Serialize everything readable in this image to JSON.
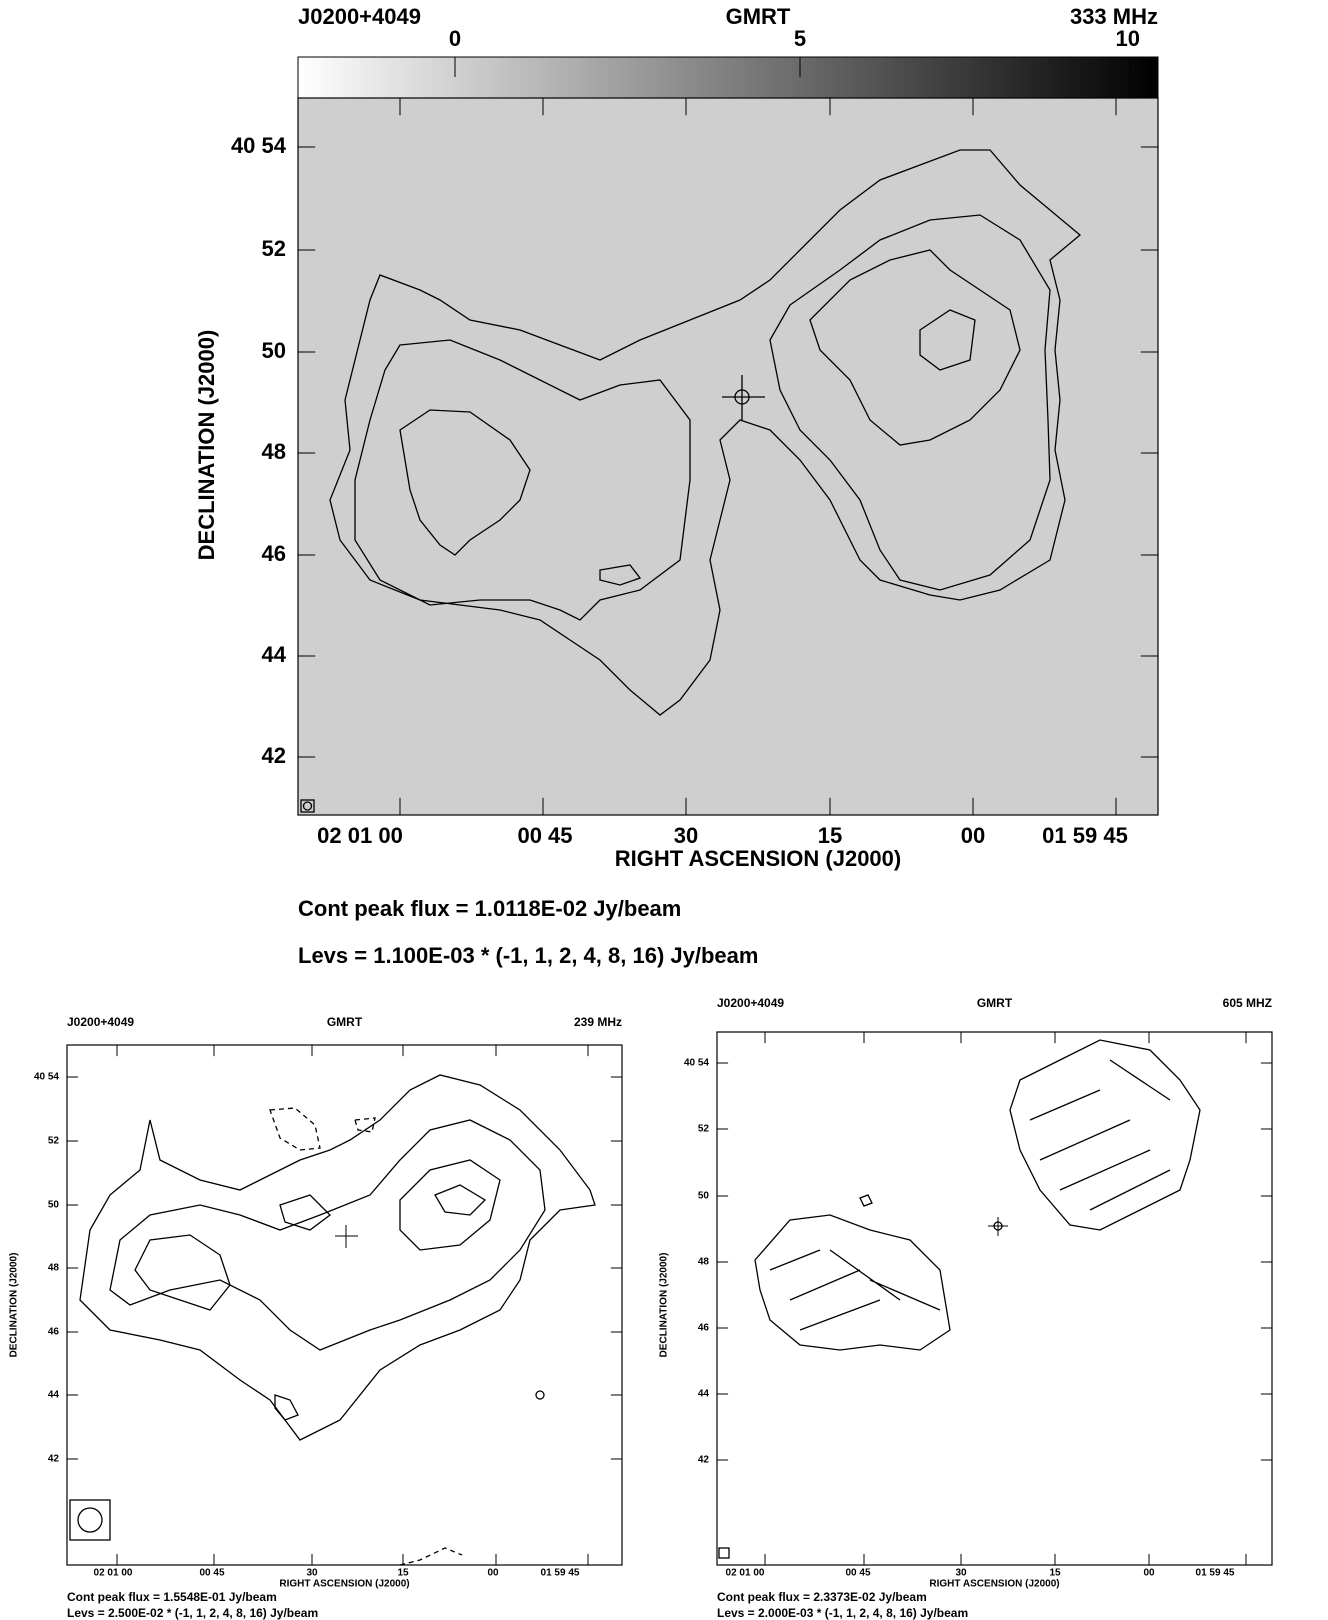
{
  "panels": [
    {
      "header": {
        "source": "J0200+4049",
        "telescope": "GMRT",
        "frequency": "333 MHz"
      },
      "colorbar_ticks": [
        "0",
        "5",
        "10"
      ],
      "y_ticks": [
        "40 54",
        "52",
        "50",
        "48",
        "46",
        "44",
        "42"
      ],
      "y_label": "DECLINATION (J2000)",
      "x_ticks": [
        "02 01 00",
        "00 45",
        "30",
        "15",
        "00",
        "01 59 45"
      ],
      "x_label": "RIGHT ASCENSION (J2000)",
      "peak_flux": "Cont peak flux =  1.0118E-02 Jy/beam",
      "levels": "Levs = 1.100E-03 * (-1, 1, 2, 4, 8, 16) Jy/beam"
    },
    {
      "header": {
        "source": "J0200+4049",
        "telescope": "GMRT",
        "frequency": "239 MHz"
      },
      "y_ticks": [
        "40 54",
        "52",
        "50",
        "48",
        "46",
        "44",
        "42"
      ],
      "y_label": "DECLINATION (J2000)",
      "x_ticks": [
        "02 01 00",
        "00 45",
        "30",
        "15",
        "00",
        "01 59 45"
      ],
      "x_label": "RIGHT ASCENSION (J2000)",
      "peak_flux": "Cont peak flux =  1.5548E-01 Jy/beam",
      "levels": "Levs = 2.500E-02 * (-1, 1, 2, 4, 8, 16) Jy/beam"
    },
    {
      "header": {
        "source": "J0200+4049",
        "telescope": "GMRT",
        "frequency": "605 MHZ"
      },
      "y_ticks": [
        "40 54",
        "52",
        "50",
        "48",
        "46",
        "44",
        "42"
      ],
      "y_label": "DECLINATION (J2000)",
      "x_ticks": [
        "02 01 00",
        "00 45",
        "30",
        "15",
        "00",
        "01 59 45"
      ],
      "x_label": "RIGHT ASCENSION (J2000)",
      "peak_flux": "Cont peak flux =  2.3373E-02 Jy/beam",
      "levels": "Levs = 2.000E-03 * (-1, 1, 2, 4, 8, 16) Jy/beam"
    }
  ]
}
